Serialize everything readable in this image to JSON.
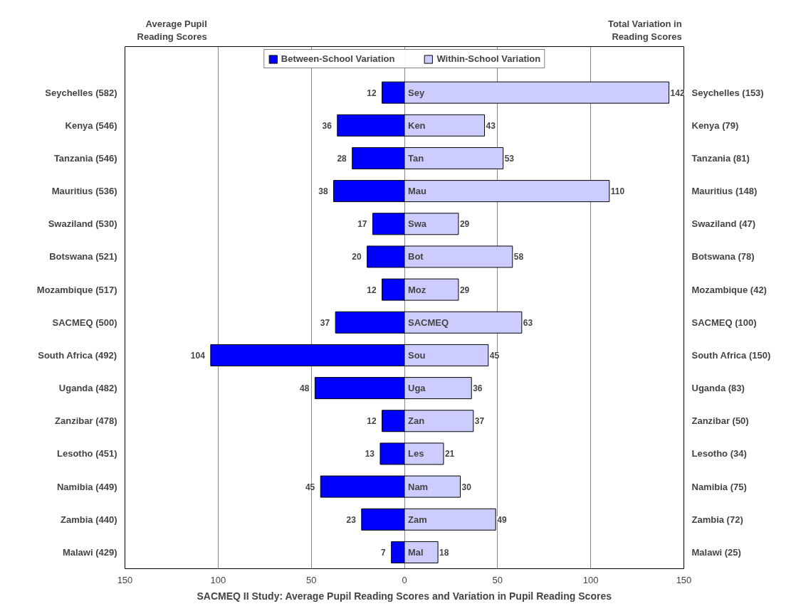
{
  "chart_data": {
    "type": "bar",
    "orientation": "horizontal",
    "title": "SACMEQ II Study: Average Pupil Reading Scores and Variation in Pupil Reading Scores",
    "ylabel": "Average Pupil Reading Scores",
    "y2label": "Total Variation in Reading Scores",
    "categories": [
      "Seychelles (582)",
      "Kenya (546)",
      "Tanzania (546)",
      "Mauritius (536)",
      "Swaziland (530)",
      "Botswana (521)",
      "Mozambique (517)",
      "SACMEQ (500)",
      "South Africa (492)",
      "Uganda (482)",
      "Zanzibar (478)",
      "Lesotho (451)",
      "Namibia (449)",
      "Zambia (440)",
      "Malawi (429)"
    ],
    "y2_categories": [
      "Seychelles (153)",
      "Kenya (79)",
      "Tanzania (81)",
      "Mauritius (148)",
      "Swaziland (47)",
      "Botswana (78)",
      "Mozambique (42)",
      "SACMEQ (100)",
      "South Africa (150)",
      "Uganda (83)",
      "Zanzibar (50)",
      "Lesotho (34)",
      "Namibia (75)",
      "Zambia (72)",
      "Malawi (25)"
    ],
    "series": [
      {
        "name": "Between-School Variation",
        "color": "#0000ff",
        "values": [
          12,
          36,
          28,
          38,
          17,
          20,
          12,
          37,
          104,
          48,
          12,
          13,
          45,
          23,
          7
        ],
        "base": [
          -12,
          -36,
          -28,
          -38,
          -17,
          -20,
          -12,
          -37,
          -104,
          -48,
          -12,
          -13,
          -45,
          -23,
          -7
        ]
      },
      {
        "name": "Within-School Variation",
        "color": "#ccccff",
        "values": [
          142,
          43,
          53,
          110,
          29,
          58,
          29,
          63,
          45,
          36,
          37,
          21,
          30,
          49,
          18
        ]
      }
    ],
    "data_labels": true,
    "annotations": [
      {
        "text": "Sey",
        "y": "Seychelles (582)"
      },
      {
        "text": "Ken",
        "y": "Kenya (546)"
      },
      {
        "text": "Tan",
        "y": "Tanzania (546)"
      },
      {
        "text": "Mau",
        "y": "Mauritius (536)"
      },
      {
        "text": "Swa",
        "y": "Swaziland (530)"
      },
      {
        "text": "Bot",
        "y": "Botswana (521)"
      },
      {
        "text": "Moz",
        "y": "Mozambique (517)"
      },
      {
        "text": "SACMEQ",
        "y": "SACMEQ (500)"
      },
      {
        "text": "Sou",
        "y": "South Africa (492)"
      },
      {
        "text": "Uga",
        "y": "Uganda (482)"
      },
      {
        "text": "Zan",
        "y": "Zanzibar (478)"
      },
      {
        "text": "Les",
        "y": "Lesotho (451)"
      },
      {
        "text": "Nam",
        "y": "Namibia (449)"
      },
      {
        "text": "Zam",
        "y": "Zambia (440)"
      },
      {
        "text": "Mal",
        "y": "Malawi (429)"
      }
    ],
    "xlim": [
      -150,
      150
    ],
    "xticks": [
      {
        "value": -150,
        "label": "150"
      },
      {
        "value": -100,
        "label": "100"
      },
      {
        "value": -50,
        "label": "50"
      },
      0,
      50,
      100,
      150
    ],
    "grid": "x",
    "legend": "top"
  }
}
